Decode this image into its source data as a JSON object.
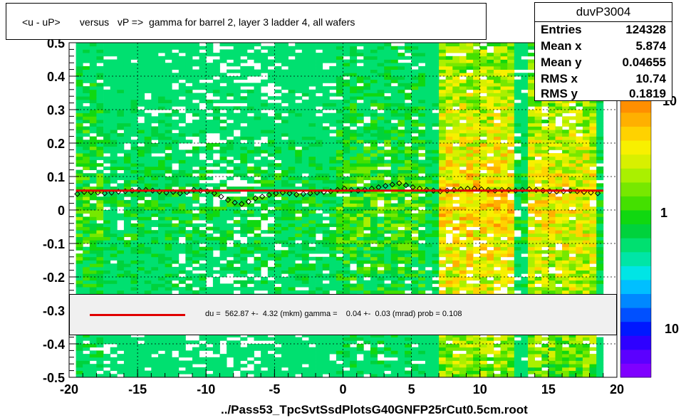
{
  "title": "<u - uP>       versus   vP =>  gamma for barrel 2, layer 3 ladder 4, all wafers",
  "stats": {
    "name": "duvP3004",
    "rows": [
      {
        "k": "Entries",
        "v": "124328"
      },
      {
        "k": "Mean x",
        "v": "5.874"
      },
      {
        "k": "Mean y",
        "v": "0.04655"
      },
      {
        "k": "RMS x",
        "v": "10.74"
      },
      {
        "k": "RMS y",
        "v": "0.1819"
      }
    ]
  },
  "legend": {
    "text": "du =  562.87 +-  4.32 (mkm) gamma =    0.04 +-  0.03 (mrad) prob = 0.108"
  },
  "footer": "../Pass53_TpcSvtSsdPlotsG40GNFP25rCut0.5cm.root",
  "colors": {
    "fit_line": "#e00000",
    "palette": [
      "#7f00ff",
      "#5b00ff",
      "#2e00ff",
      "#0018ff",
      "#0050ff",
      "#0088ff",
      "#00bfff",
      "#00e5e5",
      "#00e5a6",
      "#00e070",
      "#00d23c",
      "#10d810",
      "#44e000",
      "#77e800",
      "#aaf000",
      "#d8f000",
      "#f8f000",
      "#ffd200",
      "#ffb000",
      "#ff8f00",
      "#ff6800",
      "#ff4a00",
      "#f52f00",
      "#e81a00"
    ]
  },
  "chart_data": {
    "type": "heatmap",
    "xlim": [
      -20,
      20
    ],
    "ylim": [
      -0.5,
      0.5
    ],
    "x_ticks": [
      "-20",
      "-15",
      "-10",
      "-5",
      "0",
      "5",
      "10",
      "15",
      "20"
    ],
    "y_ticks": [
      "-0.5",
      "-0.4",
      "-0.3",
      "-0.2",
      "-0.1",
      "0",
      "0.1",
      "0.2",
      "0.3",
      "0.4",
      "0.5"
    ],
    "z_ticks": [
      "10",
      "1",
      "10"
    ],
    "grid": true,
    "fit_line": {
      "x": [
        -19.5,
        19.0
      ],
      "y": [
        0.058,
        0.058
      ]
    },
    "profile_points": [
      {
        "x": -19.4,
        "y": 0.048
      },
      {
        "x": -18.9,
        "y": 0.054
      },
      {
        "x": -18.4,
        "y": 0.053
      },
      {
        "x": -17.9,
        "y": 0.052
      },
      {
        "x": -17.4,
        "y": 0.05
      },
      {
        "x": -16.9,
        "y": 0.052
      },
      {
        "x": -16.4,
        "y": 0.055
      },
      {
        "x": -15.9,
        "y": 0.056
      },
      {
        "x": -15.4,
        "y": 0.058
      },
      {
        "x": -14.9,
        "y": 0.06
      },
      {
        "x": -14.4,
        "y": 0.06
      },
      {
        "x": -13.9,
        "y": 0.058
      },
      {
        "x": -13.4,
        "y": 0.055
      },
      {
        "x": -12.9,
        "y": 0.052
      },
      {
        "x": -12.4,
        "y": 0.054
      },
      {
        "x": -11.9,
        "y": 0.05
      },
      {
        "x": -11.4,
        "y": 0.053
      },
      {
        "x": -10.9,
        "y": 0.06
      },
      {
        "x": -10.4,
        "y": 0.058
      },
      {
        "x": -9.9,
        "y": 0.056
      },
      {
        "x": -9.4,
        "y": 0.05
      },
      {
        "x": -8.9,
        "y": 0.04
      },
      {
        "x": -8.4,
        "y": 0.03
      },
      {
        "x": -7.9,
        "y": 0.022
      },
      {
        "x": -7.4,
        "y": 0.018
      },
      {
        "x": -6.9,
        "y": 0.025
      },
      {
        "x": -6.4,
        "y": 0.035
      },
      {
        "x": -5.9,
        "y": 0.04
      },
      {
        "x": -5.4,
        "y": 0.045
      },
      {
        "x": -4.9,
        "y": 0.05
      },
      {
        "x": -4.4,
        "y": 0.052
      },
      {
        "x": -3.9,
        "y": 0.05
      },
      {
        "x": -3.4,
        "y": 0.046
      },
      {
        "x": -2.9,
        "y": 0.048
      },
      {
        "x": -2.4,
        "y": 0.05
      },
      {
        "x": -1.9,
        "y": 0.052
      },
      {
        "x": -1.4,
        "y": 0.054
      },
      {
        "x": -0.9,
        "y": 0.056
      },
      {
        "x": -0.4,
        "y": 0.06
      },
      {
        "x": 0.1,
        "y": 0.064
      },
      {
        "x": 0.6,
        "y": 0.06
      },
      {
        "x": 1.1,
        "y": 0.058
      },
      {
        "x": 1.6,
        "y": 0.06
      },
      {
        "x": 2.1,
        "y": 0.064
      },
      {
        "x": 2.6,
        "y": 0.068
      },
      {
        "x": 3.1,
        "y": 0.072
      },
      {
        "x": 3.6,
        "y": 0.076
      },
      {
        "x": 4.1,
        "y": 0.08
      },
      {
        "x": 4.6,
        "y": 0.074
      },
      {
        "x": 5.1,
        "y": 0.068
      },
      {
        "x": 5.6,
        "y": 0.064
      },
      {
        "x": 6.1,
        "y": 0.06
      },
      {
        "x": 6.6,
        "y": 0.058
      },
      {
        "x": 7.1,
        "y": 0.056
      },
      {
        "x": 7.6,
        "y": 0.058
      },
      {
        "x": 8.1,
        "y": 0.06
      },
      {
        "x": 8.6,
        "y": 0.062
      },
      {
        "x": 9.1,
        "y": 0.064
      },
      {
        "x": 9.6,
        "y": 0.064
      },
      {
        "x": 10.1,
        "y": 0.062
      },
      {
        "x": 10.6,
        "y": 0.06
      },
      {
        "x": 11.1,
        "y": 0.058
      },
      {
        "x": 11.6,
        "y": 0.06
      },
      {
        "x": 12.1,
        "y": 0.06
      },
      {
        "x": 12.6,
        "y": 0.058
      },
      {
        "x": 13.1,
        "y": 0.06
      },
      {
        "x": 13.6,
        "y": 0.062
      },
      {
        "x": 14.1,
        "y": 0.06
      },
      {
        "x": 14.6,
        "y": 0.058
      },
      {
        "x": 15.1,
        "y": 0.056
      },
      {
        "x": 15.6,
        "y": 0.055
      },
      {
        "x": 16.1,
        "y": 0.056
      },
      {
        "x": 16.6,
        "y": 0.058
      },
      {
        "x": 17.1,
        "y": 0.056
      },
      {
        "x": 17.6,
        "y": 0.054
      },
      {
        "x": 18.1,
        "y": 0.052
      },
      {
        "x": 18.6,
        "y": 0.05
      }
    ]
  }
}
